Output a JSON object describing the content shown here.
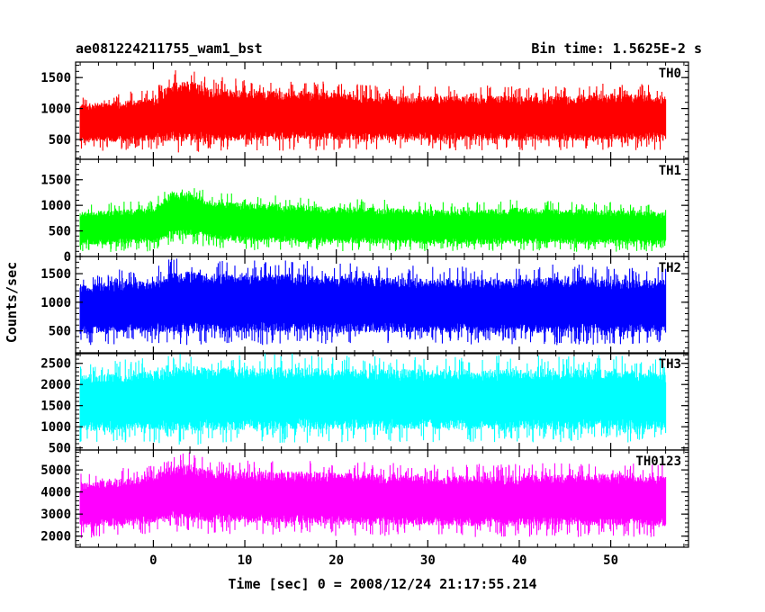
{
  "chart_data": {
    "type": "line",
    "title": "ae081224211755_wam1_bst",
    "subtitle": "Bin time: 1.5625E-2 s",
    "xlabel": "Time [sec] 0 = 2008/12/24 21:17:55.214",
    "ylabel": "Counts/sec",
    "xlim": [
      -8.5,
      58.5
    ],
    "x_ticks": [
      0,
      10,
      20,
      30,
      40,
      50
    ],
    "x_range_data": [
      -8.0,
      56.0
    ],
    "bin_time": 0.015625,
    "grid": false,
    "legend": "none",
    "panels": [
      {
        "name": "TH0",
        "color": "#ff0000",
        "ylim": [
          180,
          1750
        ],
        "y_ticks": [
          500,
          1000,
          1500
        ],
        "envelope": {
          "x": [
            -8,
            -4,
            0,
            2,
            4,
            6,
            10,
            16,
            20,
            24,
            30,
            36,
            40,
            46,
            50,
            56
          ],
          "low": [
            300,
            320,
            330,
            260,
            280,
            300,
            310,
            320,
            320,
            330,
            330,
            320,
            320,
            310,
            320,
            330
          ],
          "high": [
            1200,
            1250,
            1300,
            1600,
            1650,
            1500,
            1450,
            1450,
            1400,
            1350,
            1350,
            1350,
            1350,
            1350,
            1400,
            1350
          ]
        }
      },
      {
        "name": "TH1",
        "color": "#00ff00",
        "ylim": [
          0,
          1900
        ],
        "y_ticks": [
          0,
          500,
          1000,
          1500
        ],
        "envelope": {
          "x": [
            -8,
            -4,
            0,
            2,
            4,
            6,
            10,
            16,
            20,
            24,
            30,
            36,
            40,
            46,
            50,
            56
          ],
          "low": [
            80,
            90,
            100,
            200,
            230,
            180,
            120,
            110,
            100,
            100,
            100,
            90,
            90,
            90,
            90,
            90
          ],
          "high": [
            1000,
            1050,
            1100,
            1450,
            1400,
            1250,
            1200,
            1150,
            1100,
            1100,
            1050,
            1050,
            1100,
            1050,
            1050,
            1000
          ]
        }
      },
      {
        "name": "TH2",
        "color": "#0000ff",
        "ylim": [
          100,
          1800
        ],
        "y_ticks": [
          500,
          1000,
          1500
        ],
        "envelope": {
          "x": [
            -8,
            -4,
            0,
            2,
            4,
            6,
            10,
            16,
            20,
            24,
            30,
            36,
            40,
            46,
            50,
            56
          ],
          "low": [
            250,
            260,
            280,
            240,
            250,
            260,
            250,
            250,
            250,
            260,
            270,
            250,
            250,
            250,
            260,
            260
          ],
          "high": [
            1500,
            1550,
            1550,
            1750,
            1750,
            1700,
            1700,
            1700,
            1650,
            1650,
            1600,
            1600,
            1600,
            1650,
            1600,
            1600
          ]
        }
      },
      {
        "name": "TH3",
        "color": "#00ffff",
        "ylim": [
          450,
          2750
        ],
        "y_ticks": [
          500,
          1000,
          1500,
          2000,
          2500
        ],
        "envelope": {
          "x": [
            -8,
            -4,
            0,
            2,
            4,
            6,
            10,
            16,
            20,
            24,
            30,
            36,
            40,
            46,
            50,
            56
          ],
          "low": [
            600,
            600,
            620,
            560,
            560,
            580,
            600,
            620,
            620,
            620,
            640,
            620,
            620,
            620,
            620,
            620
          ],
          "high": [
            2500,
            2550,
            2600,
            2700,
            2750,
            2700,
            2700,
            2700,
            2650,
            2650,
            2650,
            2650,
            2650,
            2650,
            2650,
            2600
          ]
        }
      },
      {
        "name": "TH0123",
        "color": "#ff00ff",
        "ylim": [
          1500,
          5900
        ],
        "y_ticks": [
          2000,
          3000,
          4000,
          5000
        ],
        "envelope": {
          "x": [
            -8,
            -4,
            0,
            2,
            4,
            6,
            10,
            16,
            20,
            24,
            30,
            36,
            40,
            46,
            50,
            56
          ],
          "low": [
            1900,
            2000,
            2100,
            2200,
            2200,
            2100,
            2100,
            2050,
            2000,
            2000,
            2000,
            1950,
            1950,
            1950,
            1950,
            1950
          ],
          "high": [
            4800,
            5000,
            5200,
            5700,
            5750,
            5500,
            5400,
            5400,
            5350,
            5300,
            5200,
            5200,
            5200,
            5300,
            5300,
            5200
          ]
        }
      }
    ]
  }
}
